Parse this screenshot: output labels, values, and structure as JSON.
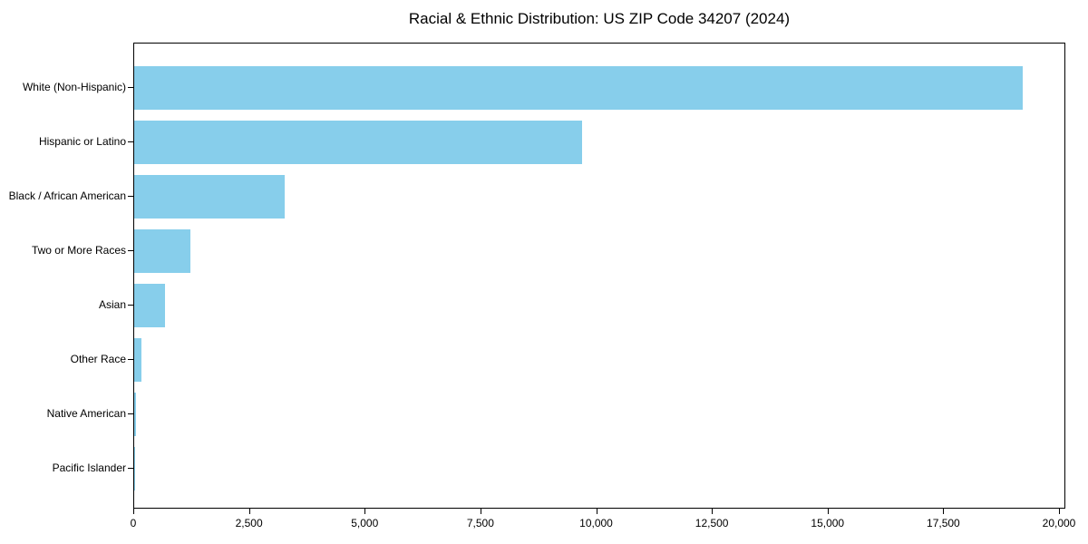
{
  "colors": {
    "bar": "#87CEEB",
    "axis": "#000000",
    "text": "#000000",
    "background": "#FFFFFF"
  },
  "chart_data": {
    "type": "bar",
    "orientation": "horizontal",
    "title": "Racial & Ethnic Distribution: US ZIP Code 34207 (2024)",
    "categories": [
      "White (Non-Hispanic)",
      "Hispanic or Latino",
      "Black / African American",
      "Two or More Races",
      "Asian",
      "Other Race",
      "Native American",
      "Pacific Islander"
    ],
    "values": [
      19200,
      9670,
      3250,
      1210,
      660,
      160,
      30,
      10
    ],
    "xlabel": "",
    "ylabel": "",
    "xlim": [
      0,
      20137
    ],
    "x_ticks": [
      0,
      2500,
      5000,
      7500,
      10000,
      12500,
      15000,
      17500,
      20000
    ],
    "x_tick_labels": [
      "0",
      "2,500",
      "5,000",
      "7,500",
      "10,000",
      "12,500",
      "15,000",
      "17,500",
      "20,000"
    ],
    "bar_color": "#87CEEB",
    "grid": false,
    "legend": null
  }
}
